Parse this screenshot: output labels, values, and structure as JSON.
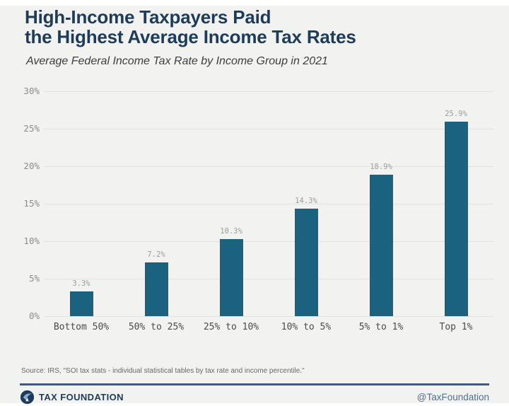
{
  "header": {
    "title_line1": "High-Income Taxpayers Paid",
    "title_line2": "the Highest Average Income Tax Rates",
    "subtitle": "Average Federal Income Tax Rate by Income Group in 2021"
  },
  "chart_data": {
    "type": "bar",
    "title": "High-Income Taxpayers Paid the Highest Average Income Tax Rates",
    "subtitle": "Average Federal Income Tax Rate by Income Group in 2021",
    "categories": [
      "Bottom 50%",
      "50% to 25%",
      "25% to 10%",
      "10% to 5%",
      "5% to 1%",
      "Top 1%"
    ],
    "values": [
      3.3,
      7.2,
      10.3,
      14.3,
      18.9,
      25.9
    ],
    "value_labels": [
      "3.3%",
      "7.2%",
      "10.3%",
      "14.3%",
      "18.9%",
      "25.9%"
    ],
    "xlabel": "",
    "ylabel": "",
    "ylim": [
      0,
      30
    ],
    "ytick_step": 5,
    "ytick_labels": [
      "0%",
      "5%",
      "10%",
      "15%",
      "20%",
      "25%",
      "30%"
    ],
    "grid": true,
    "legend": "none",
    "bar_color": "#1a6280"
  },
  "footer": {
    "source": "Source: IRS, \"SOI tax stats - individual statistical tables by tax rate and income percentile.\"",
    "brand": "TAX FOUNDATION",
    "handle": "@TaxFoundation"
  },
  "colors": {
    "title": "#1d3c5c",
    "bar": "#1a6280",
    "divider": "#3e5c7a",
    "handle": "#4f7093",
    "background": "#f2f2f0",
    "gridline": "#e2e2e0"
  }
}
